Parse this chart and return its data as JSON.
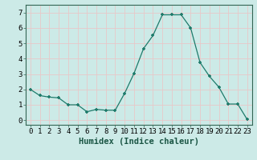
{
  "x": [
    0,
    1,
    2,
    3,
    4,
    5,
    6,
    7,
    8,
    9,
    10,
    11,
    12,
    13,
    14,
    15,
    16,
    17,
    18,
    19,
    20,
    21,
    22,
    23
  ],
  "y": [
    2.0,
    1.6,
    1.5,
    1.45,
    1.0,
    1.0,
    0.55,
    0.7,
    0.65,
    0.65,
    1.75,
    3.05,
    4.65,
    5.5,
    6.85,
    6.85,
    6.85,
    6.0,
    3.75,
    2.85,
    2.15,
    1.05,
    1.05,
    0.05
  ],
  "line_color": "#1e7b6b",
  "marker_color": "#1e7b6b",
  "bg_color": "#cceae7",
  "grid_color_major": "#e8c8c8",
  "grid_color_minor": "#e8c8c8",
  "xlabel": "Humidex (Indice chaleur)",
  "xlim": [
    -0.5,
    23.5
  ],
  "ylim": [
    -0.3,
    7.5
  ],
  "yticks": [
    0,
    1,
    2,
    3,
    4,
    5,
    6,
    7
  ],
  "xticks": [
    0,
    1,
    2,
    3,
    4,
    5,
    6,
    7,
    8,
    9,
    10,
    11,
    12,
    13,
    14,
    15,
    16,
    17,
    18,
    19,
    20,
    21,
    22,
    23
  ],
  "xlabel_fontsize": 7.5,
  "tick_fontsize": 6.5
}
